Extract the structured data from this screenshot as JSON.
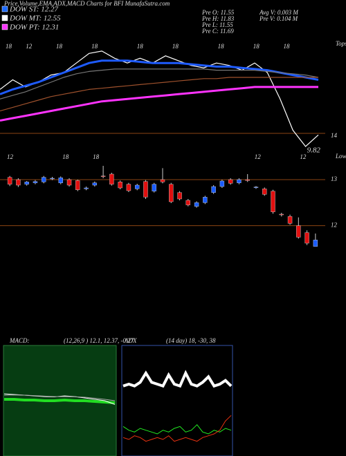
{
  "chart_data": [
    {
      "type": "line",
      "title": "Price,Volume,EMA,ADX,MACD Charts for BFI MunafaSutra.com",
      "legend": [
        {
          "text": "DOW ST: 12.27",
          "color": "#1e6bff"
        },
        {
          "text": "DOW MT: 12.55",
          "color": "#ffffff"
        },
        {
          "text": "DOW PT: 12.31",
          "color": "#ff33ff"
        }
      ],
      "info": [
        "Pre  O: 11.55",
        "Pre  H: 11.83",
        "Pre  L: 11.55",
        "Pre  C: 11.69",
        "Avg  V: 0.003 M",
        "Pre  V: 0.104 M"
      ],
      "top_labels": [
        "18",
        "12",
        "18",
        "18",
        "18",
        "18",
        "18",
        "18",
        "18"
      ],
      "bottom_labels": [
        "12",
        "18",
        "18",
        "12",
        "12"
      ],
      "tops_label": "Tops",
      "lows_label": "Lows",
      "level_label": "14",
      "low_value": 9.82,
      "ylim": [
        9.3,
        14.2
      ],
      "series": [
        {
          "color": "#ffffff",
          "values": [
            12.2,
            12.6,
            12.3,
            12.5,
            12.8,
            12.9,
            13.3,
            13.7,
            13.8,
            13.5,
            13.3,
            13.5,
            13.3,
            13.6,
            13.4,
            13.2,
            13.1,
            13.3,
            13.2,
            13.0,
            13.3,
            12.9,
            11.8,
            10.5,
            9.82,
            10.3
          ]
        },
        {
          "color": "#1e5bff",
          "values": [
            12.0,
            12.2,
            12.35,
            12.5,
            12.7,
            12.9,
            13.1,
            13.3,
            13.4,
            13.4,
            13.4,
            13.35,
            13.3,
            13.3,
            13.3,
            13.25,
            13.2,
            13.15,
            13.15,
            13.1,
            13.05,
            13.0,
            12.9,
            12.8,
            12.7,
            12.6
          ]
        },
        {
          "color": "#777777",
          "values": [
            11.8,
            11.95,
            12.1,
            12.3,
            12.5,
            12.7,
            12.85,
            12.95,
            13.0,
            13.05,
            13.05,
            13.05,
            13.05,
            13.05,
            13.05,
            13.05,
            13.05,
            13.0,
            13.0,
            13.0,
            13.0,
            12.95,
            12.9,
            12.85,
            12.8,
            12.7
          ]
        },
        {
          "color": "#a0522d",
          "values": [
            11.3,
            11.45,
            11.6,
            11.75,
            11.9,
            12.0,
            12.1,
            12.2,
            12.25,
            12.3,
            12.35,
            12.4,
            12.45,
            12.5,
            12.55,
            12.6,
            12.65,
            12.65,
            12.7,
            12.7,
            12.7,
            12.7,
            12.7,
            12.7,
            12.7,
            12.7
          ]
        },
        {
          "color": "#ff33ff",
          "values": [
            10.9,
            11.0,
            11.1,
            11.2,
            11.3,
            11.4,
            11.5,
            11.6,
            11.7,
            11.75,
            11.8,
            11.85,
            11.9,
            11.95,
            12.0,
            12.05,
            12.1,
            12.15,
            12.2,
            12.25,
            12.3,
            12.3,
            12.3,
            12.3,
            12.3,
            12.3
          ]
        }
      ]
    },
    {
      "type": "candlestick",
      "ylim": [
        11.5,
        13.3
      ],
      "yticks": [
        12,
        13
      ],
      "up_color": "#1a5cff",
      "down_color": "#e01010",
      "open": [
        13.05,
        13.0,
        12.9,
        12.93,
        12.95,
        13.02,
        12.93,
        13.0,
        12.98,
        12.8,
        12.88,
        13.08,
        13.12,
        12.95,
        12.9,
        12.8,
        12.96,
        12.75,
        13.0,
        12.9,
        12.72,
        12.55,
        12.42,
        12.5,
        12.72,
        12.85,
        13.0,
        12.93,
        13.0,
        12.83,
        12.8,
        12.75,
        12.25,
        12.2,
        12.0,
        11.85,
        11.55
      ],
      "high": [
        13.08,
        13.03,
        12.97,
        12.99,
        13.08,
        13.06,
        13.07,
        13.03,
        13.0,
        12.85,
        12.96,
        13.3,
        13.15,
        12.98,
        12.93,
        12.91,
        12.99,
        12.93,
        13.25,
        12.93,
        12.75,
        12.58,
        12.53,
        12.65,
        12.88,
        13.0,
        13.03,
        13.03,
        13.12,
        12.86,
        12.83,
        12.78,
        12.28,
        12.24,
        12.18,
        11.9,
        11.83
      ],
      "low": [
        12.86,
        12.84,
        12.87,
        12.9,
        12.92,
        12.99,
        12.9,
        12.85,
        12.75,
        12.77,
        12.85,
        13.03,
        12.87,
        12.79,
        12.73,
        12.77,
        12.58,
        12.72,
        12.92,
        12.49,
        12.55,
        12.42,
        12.39,
        12.47,
        12.69,
        12.82,
        12.89,
        12.9,
        12.95,
        12.8,
        12.65,
        12.26,
        12.2,
        12.02,
        11.72,
        11.58,
        11.55
      ],
      "close": [
        12.9,
        12.88,
        12.95,
        12.96,
        13.05,
        13.03,
        13.04,
        12.88,
        12.78,
        12.82,
        12.93,
        13.07,
        12.9,
        12.82,
        12.76,
        12.88,
        12.62,
        12.9,
        12.95,
        12.52,
        12.58,
        12.45,
        12.5,
        12.62,
        12.85,
        12.97,
        12.92,
        13.0,
        12.98,
        12.84,
        12.68,
        12.3,
        12.24,
        12.05,
        11.75,
        11.62,
        11.69
      ]
    },
    {
      "type": "line",
      "title": "MACD:",
      "subtitle": "(12,26,9 ) 12.1, 12.37, -0.27",
      "ylim": [
        -4,
        4
      ],
      "series": [
        {
          "color": "#22dd22",
          "values": [
            0.1,
            0.1,
            0.05,
            0.05,
            0.0,
            0.0,
            0.05,
            0.0,
            0.0,
            -0.05,
            -0.1,
            -0.15
          ]
        },
        {
          "color": "#ffffff",
          "values": [
            0.5,
            0.45,
            0.4,
            0.35,
            0.3,
            0.28,
            0.35,
            0.3,
            0.2,
            0.1,
            0.0,
            -0.27
          ]
        },
        {
          "color": "#aaaaaa",
          "values": [
            0.4,
            0.42,
            0.4,
            0.37,
            0.33,
            0.3,
            0.3,
            0.29,
            0.25,
            0.18,
            0.1,
            0.0
          ]
        }
      ]
    },
    {
      "type": "line",
      "title": "ADX",
      "subtitle": "(14 day) 18, -30, 38",
      "ylim": [
        0,
        60
      ],
      "series": [
        {
          "color": "#ffffff",
          "values": [
            38,
            39,
            38,
            40,
            45,
            40,
            39,
            38,
            44,
            39,
            38,
            45,
            39,
            38,
            40,
            43,
            38,
            39,
            41,
            38
          ]
        },
        {
          "color": "#22ee22",
          "values": [
            16,
            14,
            13,
            15,
            14,
            13,
            12,
            14,
            13,
            15,
            16,
            13,
            14,
            17,
            13,
            12,
            14,
            13,
            15,
            14
          ]
        },
        {
          "color": "#ee3311",
          "values": [
            10,
            9,
            11,
            10,
            8,
            9,
            10,
            9,
            11,
            8,
            9,
            10,
            9,
            8,
            10,
            11,
            12,
            14,
            19,
            22
          ]
        }
      ]
    }
  ]
}
